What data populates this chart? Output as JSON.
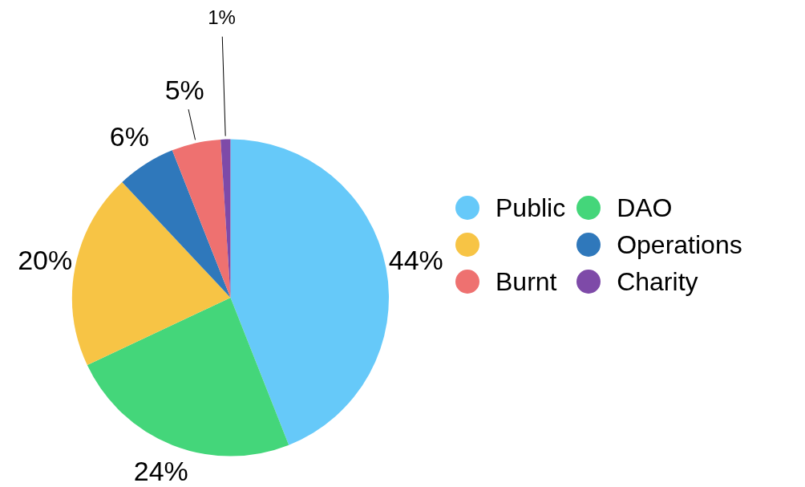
{
  "chart_data": {
    "type": "pie",
    "categories": [
      "Public",
      "DAO",
      null,
      "Operations",
      "Burnt",
      "Charity"
    ],
    "values": [
      44,
      24,
      20,
      6,
      5,
      1
    ],
    "colors": [
      "#66c9f9",
      "#44d67a",
      "#f7c445",
      "#2f78bb",
      "#ee7170",
      "#7e4aa8"
    ],
    "value_labels": [
      "44%",
      "24%",
      "20%",
      "6%",
      "5%",
      "1%"
    ],
    "legend": "right"
  }
}
